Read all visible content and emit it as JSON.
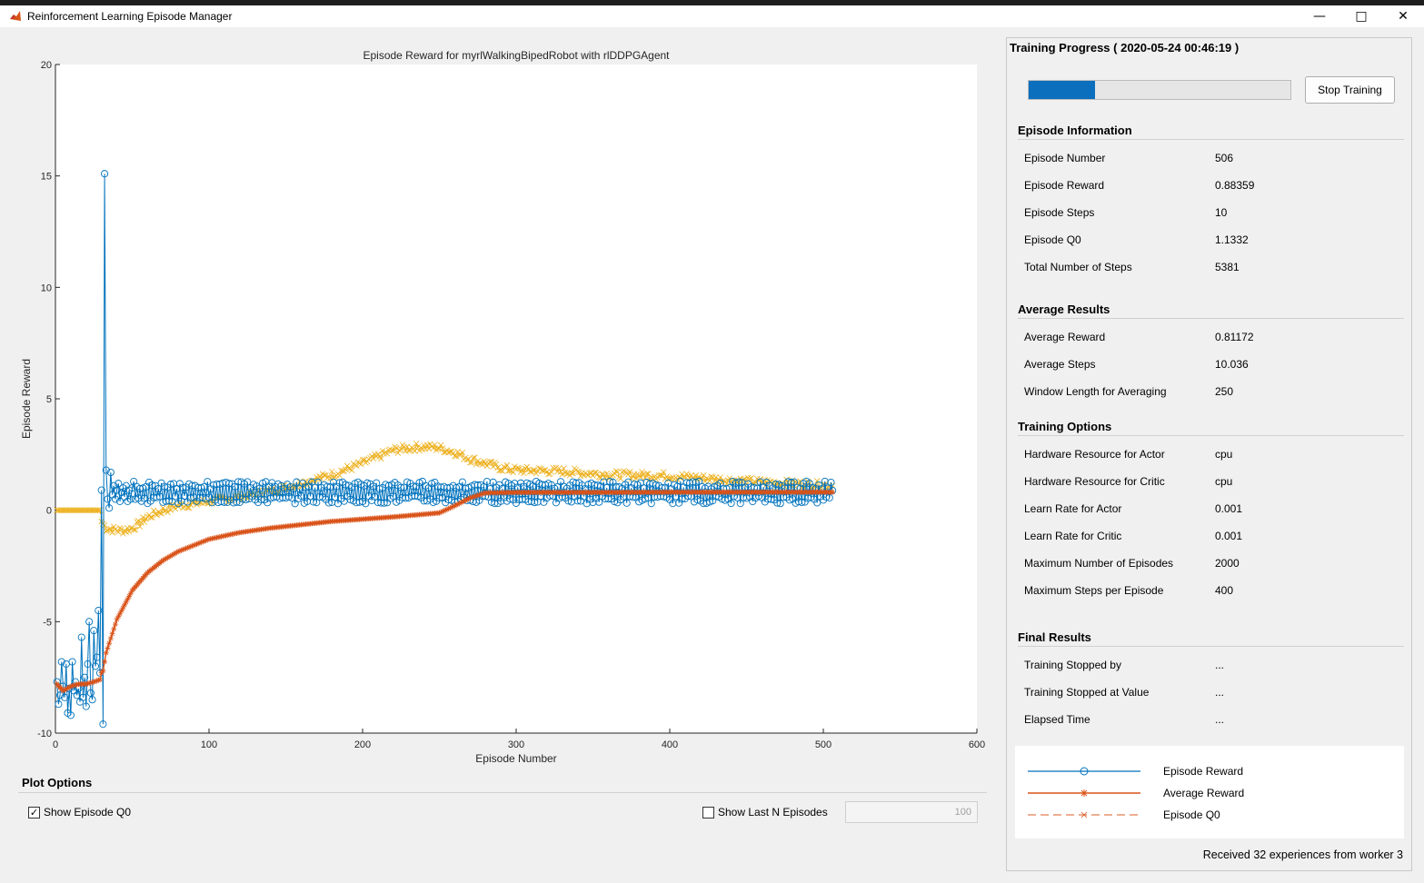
{
  "window": {
    "title": "Reinforcement Learning Episode Manager",
    "icon": "matlab-icon",
    "controls": [
      "minimize-icon",
      "maximize-icon",
      "close-icon"
    ]
  },
  "chart_data": {
    "type": "line",
    "title": "Episode Reward for myrlWalkingBipedRobot with rlDDPGAgent",
    "xlabel": "Episode Number",
    "ylabel": "Episode Reward",
    "xlim": [
      0,
      600
    ],
    "ylim": [
      -10,
      20
    ],
    "xticks": [
      "0",
      "100",
      "200",
      "300",
      "400",
      "500",
      "600"
    ],
    "yticks": [
      "-10",
      "-5",
      "0",
      "5",
      "10",
      "15",
      "20"
    ],
    "grid": false,
    "series": [
      {
        "name": "Episode Reward",
        "color": "#0072BD",
        "marker": "circle",
        "line_style": "solid",
        "episodes": 506,
        "points": [
          [
            1,
            -7.7
          ],
          [
            2,
            -8.7
          ],
          [
            3,
            -8.3
          ],
          [
            4,
            -6.8
          ],
          [
            5,
            -7.9
          ],
          [
            6,
            -8.4
          ],
          [
            7,
            -6.9
          ],
          [
            8,
            -9.1
          ],
          [
            9,
            -8.0
          ],
          [
            10,
            -9.2
          ],
          [
            11,
            -6.8
          ],
          [
            12,
            -8.1
          ],
          [
            13,
            -7.7
          ],
          [
            14,
            -8.3
          ],
          [
            15,
            -8.0
          ],
          [
            16,
            -8.6
          ],
          [
            17,
            -5.7
          ],
          [
            18,
            -8.4
          ],
          [
            19,
            -7.5
          ],
          [
            20,
            -8.8
          ],
          [
            21,
            -6.9
          ],
          [
            22,
            -5.0
          ],
          [
            23,
            -8.2
          ],
          [
            24,
            -8.5
          ],
          [
            25,
            -5.4
          ],
          [
            26,
            -7.0
          ],
          [
            27,
            -6.6
          ],
          [
            28,
            -4.5
          ],
          [
            29,
            -7.3
          ],
          [
            30,
            0.9
          ],
          [
            31,
            -9.6
          ],
          [
            32,
            15.1
          ],
          [
            33,
            1.8
          ],
          [
            34,
            0.5
          ],
          [
            35,
            0.1
          ],
          [
            36,
            1.7
          ],
          [
            37,
            0.7
          ],
          [
            38,
            1.1
          ],
          [
            39,
            0.5
          ],
          [
            40,
            0.9
          ],
          [
            41,
            1.2
          ],
          [
            42,
            0.4
          ],
          [
            43,
            0.8
          ],
          [
            44,
            1.0
          ],
          [
            45,
            0.6
          ],
          [
            46,
            1.1
          ],
          [
            47,
            0.4
          ],
          [
            48,
            0.9
          ],
          [
            49,
            0.5
          ],
          [
            50,
            1.0
          ]
        ],
        "steady_range": [
          0.3,
          1.3
        ],
        "final_value": 0.88359
      },
      {
        "name": "Average Reward",
        "color": "#D95319",
        "marker": "star",
        "line_style": "solid",
        "points": [
          [
            1,
            -7.8
          ],
          [
            5,
            -8.1
          ],
          [
            10,
            -7.9
          ],
          [
            15,
            -7.8
          ],
          [
            20,
            -7.8
          ],
          [
            25,
            -7.7
          ],
          [
            29,
            -7.6
          ],
          [
            30,
            -7.3
          ],
          [
            31,
            -7.2
          ],
          [
            33,
            -6.4
          ],
          [
            40,
            -4.9
          ],
          [
            50,
            -3.6
          ],
          [
            60,
            -2.8
          ],
          [
            70,
            -2.25
          ],
          [
            80,
            -1.85
          ],
          [
            100,
            -1.3
          ],
          [
            120,
            -1.0
          ],
          [
            140,
            -0.8
          ],
          [
            160,
            -0.65
          ],
          [
            180,
            -0.5
          ],
          [
            200,
            -0.4
          ],
          [
            220,
            -0.3
          ],
          [
            240,
            -0.18
          ],
          [
            250,
            -0.12
          ],
          [
            260,
            0.2
          ],
          [
            270,
            0.55
          ],
          [
            280,
            0.78
          ],
          [
            300,
            0.8
          ],
          [
            350,
            0.8
          ],
          [
            400,
            0.81
          ],
          [
            450,
            0.81
          ],
          [
            506,
            0.81
          ]
        ]
      },
      {
        "name": "Episode Q0",
        "color": "#EDB120",
        "marker": "x",
        "line_style": "dashed",
        "points": [
          [
            1,
            0.0
          ],
          [
            10,
            0.0
          ],
          [
            20,
            0.0
          ],
          [
            25,
            0.0
          ],
          [
            29,
            0.0
          ],
          [
            30,
            -0.5
          ],
          [
            33,
            -0.8
          ],
          [
            40,
            -0.9
          ],
          [
            45,
            -0.9
          ],
          [
            50,
            -0.8
          ],
          [
            55,
            -0.6
          ],
          [
            60,
            -0.3
          ],
          [
            70,
            0.0
          ],
          [
            80,
            0.2
          ],
          [
            90,
            0.3
          ],
          [
            100,
            0.4
          ],
          [
            120,
            0.6
          ],
          [
            140,
            0.85
          ],
          [
            160,
            1.2
          ],
          [
            180,
            1.6
          ],
          [
            200,
            2.1
          ],
          [
            210,
            2.4
          ],
          [
            220,
            2.7
          ],
          [
            230,
            2.8
          ],
          [
            240,
            2.85
          ],
          [
            250,
            2.8
          ],
          [
            260,
            2.6
          ],
          [
            270,
            2.3
          ],
          [
            280,
            2.1
          ],
          [
            290,
            1.9
          ],
          [
            300,
            1.8
          ],
          [
            330,
            1.75
          ],
          [
            360,
            1.6
          ],
          [
            400,
            1.55
          ],
          [
            420,
            1.45
          ],
          [
            450,
            1.3
          ],
          [
            480,
            1.2
          ],
          [
            506,
            1.1
          ]
        ]
      }
    ],
    "legend": {
      "placement": "right-panel",
      "entries": [
        "Episode Reward",
        "Average Reward",
        "Episode Q0"
      ]
    }
  },
  "plot_options": {
    "header": "Plot Options",
    "show_q0": {
      "label": "Show Episode Q0",
      "checked": true
    },
    "show_last_n": {
      "label": "Show Last N Episodes",
      "checked": false
    },
    "n_value": "100"
  },
  "training_progress": {
    "title": "Training Progress ( 2020-05-24 00:46:19 )",
    "progress": 0.253,
    "stop_button": "Stop Training",
    "episode_information": {
      "header": "Episode Information",
      "rows": [
        {
          "label": "Episode Number",
          "value": "506"
        },
        {
          "label": "Episode Reward",
          "value": "0.88359"
        },
        {
          "label": "Episode Steps",
          "value": "10"
        },
        {
          "label": "Episode Q0",
          "value": "1.1332"
        },
        {
          "label": "Total Number of Steps",
          "value": "5381"
        }
      ]
    },
    "average_results": {
      "header": "Average Results",
      "rows": [
        {
          "label": "Average Reward",
          "value": "0.81172"
        },
        {
          "label": "Average Steps",
          "value": "10.036"
        },
        {
          "label": "Window Length for Averaging",
          "value": "250"
        }
      ]
    },
    "training_options": {
      "header": "Training Options",
      "rows": [
        {
          "label": "Hardware Resource for Actor",
          "value": "cpu"
        },
        {
          "label": "Hardware Resource for Critic",
          "value": "cpu"
        },
        {
          "label": "Learn Rate for Actor",
          "value": "0.001"
        },
        {
          "label": "Learn Rate for Critic",
          "value": "0.001"
        },
        {
          "label": "Maximum Number of Episodes",
          "value": "2000"
        },
        {
          "label": "Maximum Steps per Episode",
          "value": "400"
        }
      ]
    },
    "final_results": {
      "header": "Final Results",
      "rows": [
        {
          "label": "Training Stopped by",
          "value": "..."
        },
        {
          "label": "Training Stopped at Value",
          "value": "..."
        },
        {
          "label": "Elapsed Time",
          "value": "..."
        }
      ]
    },
    "legend": [
      "Episode Reward",
      "Average Reward",
      "Episode Q0"
    ],
    "status": "Received 32 experiences from worker 3"
  }
}
